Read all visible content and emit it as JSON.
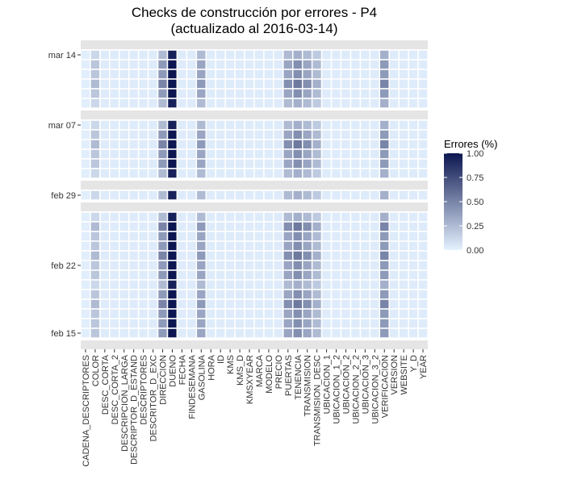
{
  "chart_data": {
    "type": "heatmap",
    "title": "Checks de construcción por errores - P4",
    "subtitle": "(actualizado al 2016-03-14)",
    "x": [
      "CADENA_DESCRIPTORES",
      "COLOR",
      "DESC_CORTA",
      "DESC_CORTA_2",
      "DESCRIPCION_LARGA",
      "DESCRIPTOR_D_ESTAND",
      "DESCRIPTORES",
      "DESCRITOR_D_EXC",
      "DIRECCION",
      "DUENO",
      "FECHA",
      "FINDESEMANA",
      "GASOLINA",
      "HORA",
      "ID",
      "KMS",
      "KMS_D",
      "KMSXYEAR",
      "MARCA",
      "MODELO",
      "PRECIO",
      "PUERTAS",
      "TENENCIA",
      "TRANSMISION",
      "TRANSMISION_DESC",
      "UBICACION_1",
      "UBICACION_1_2",
      "UBICACION_2",
      "UBICACION_2_2",
      "UBICACION_3",
      "UBICACION_3_2",
      "VERIFICACION",
      "VERSION",
      "WEBSITE",
      "Y_D",
      "YEAR"
    ],
    "facets": [
      {
        "y": [
          "mar 14",
          null,
          null,
          null,
          null,
          null
        ],
        "values": [
          [
            0.02,
            0.12,
            0.03,
            0.03,
            0.03,
            0.03,
            0.03,
            0.03,
            0.25,
            0.95,
            0.03,
            0.03,
            0.25,
            0.03,
            0.03,
            0.03,
            0.03,
            0.03,
            0.03,
            0.03,
            0.03,
            0.25,
            0.3,
            0.25,
            0.18,
            0.03,
            0.03,
            0.03,
            0.03,
            0.03,
            0.03,
            0.3,
            0.03,
            0.03,
            0.03,
            0.03
          ],
          [
            0.02,
            0.2,
            0.03,
            0.03,
            0.03,
            0.03,
            0.03,
            0.03,
            0.4,
            1,
            0.03,
            0.03,
            0.35,
            0.03,
            0.03,
            0.03,
            0.03,
            0.03,
            0.03,
            0.03,
            0.03,
            0.35,
            0.45,
            0.35,
            0.25,
            0.03,
            0.03,
            0.03,
            0.03,
            0.03,
            0.03,
            0.4,
            0.03,
            0.03,
            0.03,
            0.03
          ],
          [
            0.02,
            0.2,
            0.03,
            0.03,
            0.03,
            0.03,
            0.03,
            0.03,
            0.4,
            1,
            0.03,
            0.03,
            0.35,
            0.03,
            0.03,
            0.03,
            0.03,
            0.03,
            0.03,
            0.03,
            0.03,
            0.35,
            0.45,
            0.35,
            0.25,
            0.03,
            0.03,
            0.03,
            0.03,
            0.03,
            0.03,
            0.4,
            0.03,
            0.03,
            0.03,
            0.03
          ],
          [
            0.02,
            0.25,
            0.03,
            0.03,
            0.03,
            0.03,
            0.03,
            0.03,
            0.5,
            1,
            0.03,
            0.03,
            0.4,
            0.03,
            0.03,
            0.03,
            0.03,
            0.03,
            0.03,
            0.03,
            0.03,
            0.45,
            0.55,
            0.45,
            0.3,
            0.03,
            0.03,
            0.03,
            0.03,
            0.03,
            0.03,
            0.5,
            0.03,
            0.03,
            0.03,
            0.03
          ],
          [
            0.02,
            0.2,
            0.03,
            0.03,
            0.03,
            0.03,
            0.03,
            0.03,
            0.4,
            1,
            0.03,
            0.03,
            0.35,
            0.03,
            0.03,
            0.03,
            0.03,
            0.03,
            0.03,
            0.03,
            0.03,
            0.35,
            0.45,
            0.35,
            0.25,
            0.03,
            0.03,
            0.03,
            0.03,
            0.03,
            0.03,
            0.4,
            0.03,
            0.03,
            0.03,
            0.03
          ],
          [
            0.02,
            0.12,
            0.03,
            0.03,
            0.03,
            0.03,
            0.03,
            0.03,
            0.25,
            0.95,
            0.03,
            0.03,
            0.25,
            0.03,
            0.03,
            0.03,
            0.03,
            0.03,
            0.03,
            0.03,
            0.03,
            0.25,
            0.3,
            0.25,
            0.18,
            0.03,
            0.03,
            0.03,
            0.03,
            0.03,
            0.03,
            0.3,
            0.03,
            0.03,
            0.03,
            0.03
          ]
        ]
      },
      {
        "y": [
          "mar 07",
          null,
          null,
          null,
          null,
          null
        ],
        "values": [
          [
            0.02,
            0.12,
            0.03,
            0.03,
            0.03,
            0.03,
            0.03,
            0.03,
            0.25,
            0.95,
            0.03,
            0.03,
            0.25,
            0.03,
            0.03,
            0.03,
            0.03,
            0.03,
            0.03,
            0.03,
            0.03,
            0.25,
            0.3,
            0.25,
            0.18,
            0.03,
            0.03,
            0.03,
            0.03,
            0.03,
            0.03,
            0.3,
            0.03,
            0.03,
            0.03,
            0.03
          ],
          [
            0.02,
            0.2,
            0.03,
            0.03,
            0.03,
            0.03,
            0.03,
            0.03,
            0.4,
            1,
            0.03,
            0.03,
            0.35,
            0.03,
            0.03,
            0.03,
            0.03,
            0.03,
            0.03,
            0.03,
            0.03,
            0.35,
            0.45,
            0.35,
            0.25,
            0.03,
            0.03,
            0.03,
            0.03,
            0.03,
            0.03,
            0.4,
            0.03,
            0.03,
            0.03,
            0.03
          ],
          [
            0.02,
            0.25,
            0.03,
            0.03,
            0.03,
            0.03,
            0.03,
            0.03,
            0.5,
            1,
            0.03,
            0.03,
            0.4,
            0.03,
            0.03,
            0.03,
            0.03,
            0.03,
            0.03,
            0.03,
            0.03,
            0.45,
            0.55,
            0.45,
            0.3,
            0.03,
            0.03,
            0.03,
            0.03,
            0.03,
            0.03,
            0.5,
            0.03,
            0.03,
            0.03,
            0.03
          ],
          [
            0.02,
            0.2,
            0.03,
            0.03,
            0.03,
            0.03,
            0.03,
            0.03,
            0.4,
            1,
            0.03,
            0.03,
            0.35,
            0.03,
            0.03,
            0.03,
            0.03,
            0.03,
            0.03,
            0.03,
            0.03,
            0.35,
            0.45,
            0.35,
            0.25,
            0.03,
            0.03,
            0.03,
            0.03,
            0.03,
            0.03,
            0.4,
            0.03,
            0.03,
            0.03,
            0.03
          ],
          [
            0.02,
            0.2,
            0.03,
            0.03,
            0.03,
            0.03,
            0.03,
            0.03,
            0.4,
            1,
            0.03,
            0.03,
            0.35,
            0.03,
            0.03,
            0.03,
            0.03,
            0.03,
            0.03,
            0.03,
            0.03,
            0.35,
            0.45,
            0.35,
            0.25,
            0.03,
            0.03,
            0.03,
            0.03,
            0.03,
            0.03,
            0.4,
            0.03,
            0.03,
            0.03,
            0.03
          ],
          [
            0.02,
            0.12,
            0.03,
            0.03,
            0.03,
            0.03,
            0.03,
            0.03,
            0.25,
            0.95,
            0.03,
            0.03,
            0.25,
            0.03,
            0.03,
            0.03,
            0.03,
            0.03,
            0.03,
            0.03,
            0.03,
            0.25,
            0.3,
            0.25,
            0.18,
            0.03,
            0.03,
            0.03,
            0.03,
            0.03,
            0.03,
            0.3,
            0.03,
            0.03,
            0.03,
            0.03
          ]
        ]
      },
      {
        "y": [
          "feb 29"
        ],
        "values": [
          [
            0.02,
            0.12,
            0.03,
            0.03,
            0.03,
            0.03,
            0.03,
            0.03,
            0.25,
            0.95,
            0.03,
            0.03,
            0.25,
            0.03,
            0.03,
            0.03,
            0.03,
            0.03,
            0.03,
            0.03,
            0.03,
            0.25,
            0.3,
            0.25,
            0.18,
            0.03,
            0.03,
            0.03,
            0.03,
            0.03,
            0.03,
            0.3,
            0.03,
            0.03,
            0.03,
            0.03
          ]
        ]
      },
      {
        "y": [
          null,
          null,
          null,
          null,
          null,
          "feb 22",
          null,
          null,
          null,
          null,
          null,
          null,
          "feb 15"
        ],
        "values": [
          [
            0.02,
            0.12,
            0.03,
            0.03,
            0.03,
            0.03,
            0.03,
            0.03,
            0.25,
            0.95,
            0.03,
            0.03,
            0.25,
            0.03,
            0.03,
            0.03,
            0.03,
            0.03,
            0.03,
            0.03,
            0.03,
            0.25,
            0.3,
            0.25,
            0.18,
            0.03,
            0.03,
            0.03,
            0.03,
            0.03,
            0.03,
            0.3,
            0.03,
            0.03,
            0.03,
            0.03
          ],
          [
            0.02,
            0.25,
            0.03,
            0.03,
            0.03,
            0.03,
            0.03,
            0.03,
            0.5,
            1,
            0.03,
            0.03,
            0.4,
            0.03,
            0.03,
            0.03,
            0.03,
            0.03,
            0.03,
            0.03,
            0.03,
            0.45,
            0.55,
            0.45,
            0.3,
            0.03,
            0.03,
            0.03,
            0.03,
            0.03,
            0.03,
            0.5,
            0.03,
            0.03,
            0.03,
            0.03
          ],
          [
            0.02,
            0.2,
            0.03,
            0.03,
            0.03,
            0.03,
            0.03,
            0.03,
            0.4,
            1,
            0.03,
            0.03,
            0.35,
            0.03,
            0.03,
            0.03,
            0.03,
            0.03,
            0.03,
            0.03,
            0.03,
            0.35,
            0.45,
            0.35,
            0.25,
            0.03,
            0.03,
            0.03,
            0.03,
            0.03,
            0.03,
            0.4,
            0.03,
            0.03,
            0.03,
            0.03
          ],
          [
            0.02,
            0.2,
            0.03,
            0.03,
            0.03,
            0.03,
            0.03,
            0.03,
            0.4,
            1,
            0.03,
            0.03,
            0.35,
            0.03,
            0.03,
            0.03,
            0.03,
            0.03,
            0.03,
            0.03,
            0.03,
            0.35,
            0.45,
            0.35,
            0.25,
            0.03,
            0.03,
            0.03,
            0.03,
            0.03,
            0.03,
            0.4,
            0.03,
            0.03,
            0.03,
            0.03
          ],
          [
            0.02,
            0.25,
            0.03,
            0.03,
            0.03,
            0.03,
            0.03,
            0.03,
            0.5,
            1,
            0.03,
            0.03,
            0.4,
            0.03,
            0.03,
            0.03,
            0.03,
            0.03,
            0.03,
            0.03,
            0.03,
            0.45,
            0.55,
            0.45,
            0.3,
            0.03,
            0.03,
            0.03,
            0.03,
            0.03,
            0.03,
            0.5,
            0.03,
            0.03,
            0.03,
            0.03
          ],
          [
            0.02,
            0.2,
            0.03,
            0.03,
            0.03,
            0.03,
            0.03,
            0.03,
            0.4,
            1,
            0.03,
            0.03,
            0.35,
            0.03,
            0.03,
            0.03,
            0.03,
            0.03,
            0.03,
            0.03,
            0.03,
            0.35,
            0.45,
            0.35,
            0.25,
            0.03,
            0.03,
            0.03,
            0.03,
            0.03,
            0.03,
            0.4,
            0.03,
            0.03,
            0.03,
            0.03
          ],
          [
            0.02,
            0.2,
            0.03,
            0.03,
            0.03,
            0.03,
            0.03,
            0.03,
            0.4,
            1,
            0.03,
            0.03,
            0.35,
            0.03,
            0.03,
            0.03,
            0.03,
            0.03,
            0.03,
            0.03,
            0.03,
            0.35,
            0.45,
            0.35,
            0.25,
            0.03,
            0.03,
            0.03,
            0.03,
            0.03,
            0.03,
            0.4,
            0.03,
            0.03,
            0.03,
            0.03
          ],
          [
            0.02,
            0.12,
            0.03,
            0.03,
            0.03,
            0.03,
            0.03,
            0.03,
            0.25,
            0.95,
            0.03,
            0.03,
            0.25,
            0.03,
            0.03,
            0.03,
            0.03,
            0.03,
            0.03,
            0.03,
            0.03,
            0.25,
            0.3,
            0.25,
            0.18,
            0.03,
            0.03,
            0.03,
            0.03,
            0.03,
            0.03,
            0.3,
            0.03,
            0.03,
            0.03,
            0.03
          ],
          [
            0.02,
            0.2,
            0.03,
            0.03,
            0.03,
            0.03,
            0.03,
            0.03,
            0.4,
            1,
            0.03,
            0.03,
            0.35,
            0.03,
            0.03,
            0.03,
            0.03,
            0.03,
            0.03,
            0.03,
            0.03,
            0.35,
            0.45,
            0.35,
            0.25,
            0.03,
            0.03,
            0.03,
            0.03,
            0.03,
            0.03,
            0.4,
            0.03,
            0.03,
            0.03,
            0.03
          ],
          [
            0.02,
            0.25,
            0.03,
            0.03,
            0.03,
            0.03,
            0.03,
            0.03,
            0.5,
            1,
            0.03,
            0.03,
            0.4,
            0.03,
            0.03,
            0.03,
            0.03,
            0.03,
            0.03,
            0.03,
            0.03,
            0.45,
            0.55,
            0.45,
            0.3,
            0.03,
            0.03,
            0.03,
            0.03,
            0.03,
            0.03,
            0.5,
            0.03,
            0.03,
            0.03,
            0.03
          ],
          [
            0.02,
            0.2,
            0.03,
            0.03,
            0.03,
            0.03,
            0.03,
            0.03,
            0.4,
            1,
            0.03,
            0.03,
            0.35,
            0.03,
            0.03,
            0.03,
            0.03,
            0.03,
            0.03,
            0.03,
            0.03,
            0.35,
            0.45,
            0.35,
            0.25,
            0.03,
            0.03,
            0.03,
            0.03,
            0.03,
            0.03,
            0.4,
            0.03,
            0.03,
            0.03,
            0.03
          ],
          [
            0.02,
            0.2,
            0.03,
            0.03,
            0.03,
            0.03,
            0.03,
            0.03,
            0.4,
            1,
            0.03,
            0.03,
            0.35,
            0.03,
            0.03,
            0.03,
            0.03,
            0.03,
            0.03,
            0.03,
            0.03,
            0.35,
            0.45,
            0.35,
            0.25,
            0.03,
            0.03,
            0.03,
            0.03,
            0.03,
            0.03,
            0.4,
            0.03,
            0.03,
            0.03,
            0.03
          ],
          [
            0.02,
            0.2,
            0.03,
            0.03,
            0.03,
            0.03,
            0.03,
            0.03,
            0.4,
            1,
            0.03,
            0.03,
            0.35,
            0.03,
            0.03,
            0.03,
            0.03,
            0.03,
            0.03,
            0.03,
            0.03,
            0.35,
            0.45,
            0.35,
            0.25,
            0.03,
            0.03,
            0.03,
            0.03,
            0.03,
            0.03,
            0.4,
            0.03,
            0.03,
            0.03,
            0.03
          ]
        ]
      }
    ],
    "legend_title": "Errores (%)",
    "color_scale": {
      "limits": [
        0,
        1
      ],
      "colors": [
        "#e5f2ff",
        "#0c1650"
      ],
      "ticks": [
        {
          "value": 0,
          "label": "0.00"
        },
        {
          "value": 0.25,
          "label": "0.25"
        },
        {
          "value": 0.5,
          "label": "0.50"
        },
        {
          "value": 0.75,
          "label": "0.75"
        },
        {
          "value": 1,
          "label": "1.00"
        }
      ]
    }
  }
}
